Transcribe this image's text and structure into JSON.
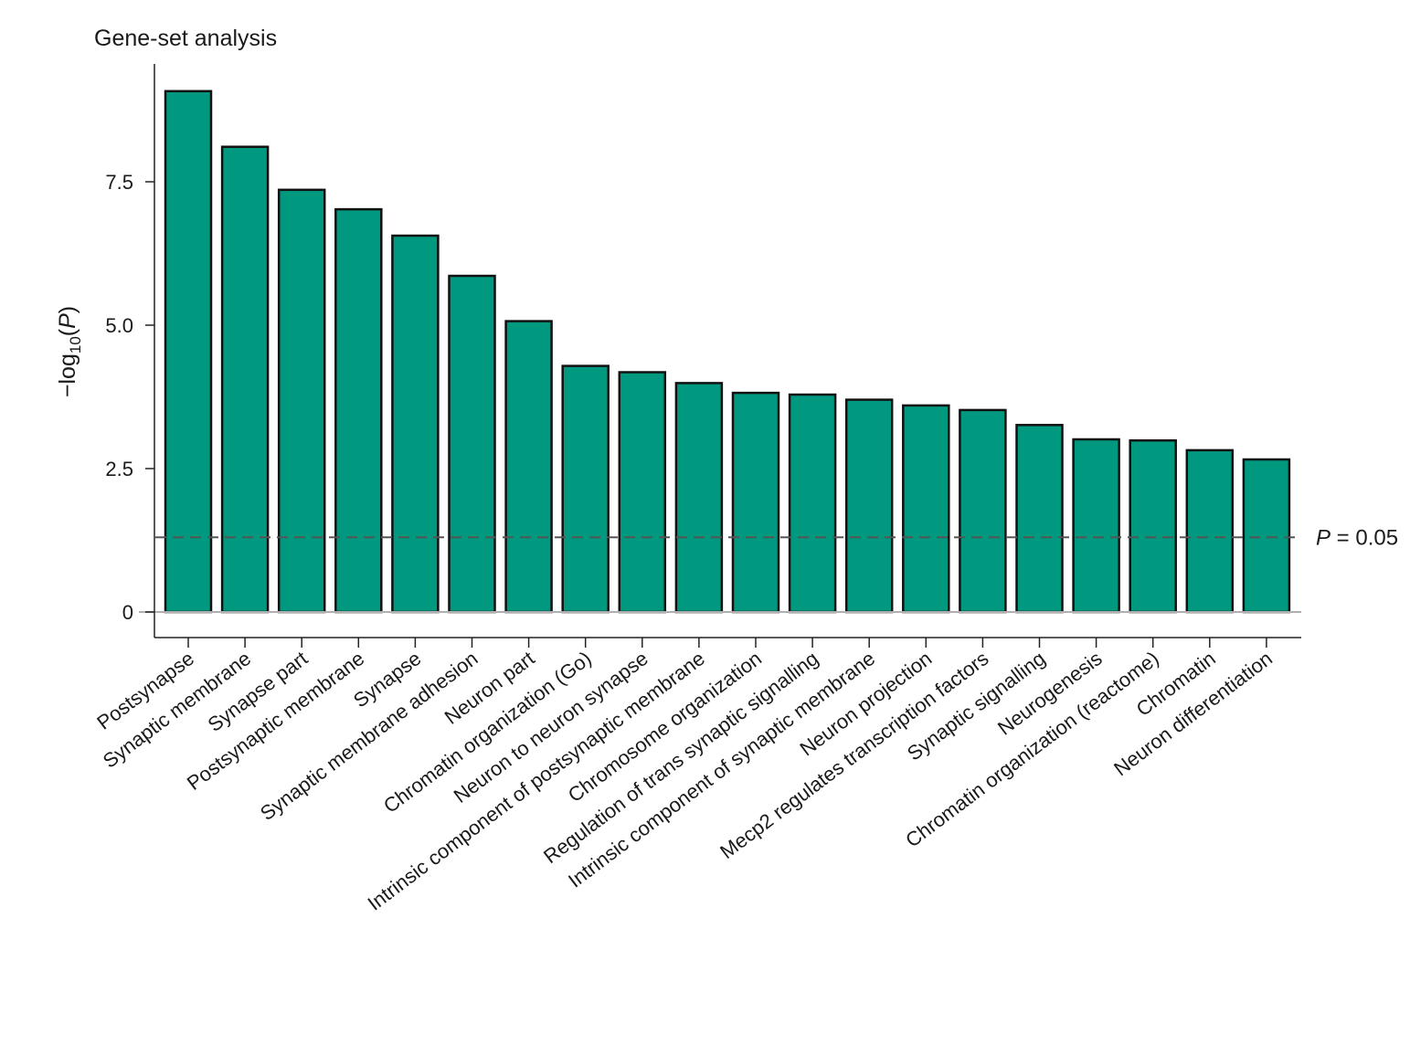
{
  "chart_data": {
    "type": "bar",
    "title": "Gene-set analysis",
    "ylabel": {
      "prefix": "−log",
      "subscript": "10",
      "open": "(",
      "var": "P",
      "close": ")"
    },
    "ylim": [
      0,
      9.3
    ],
    "yticks": [
      {
        "value": 0,
        "label": "0"
      },
      {
        "value": 2.5,
        "label": "2.5"
      },
      {
        "value": 5.0,
        "label": "5.0"
      },
      {
        "value": 7.5,
        "label": "7.5"
      }
    ],
    "categories": [
      "Postsynapse",
      "Synaptic membrane",
      "Synapse part",
      "Postsynaptic membrane",
      "Synapse",
      "Synaptic membrane adhesion",
      "Neuron part",
      "Chromatin organization (Go)",
      "Neuron to neuron synapse",
      "Intrinsic component of postsynaptic membrane",
      "Chromosome organization",
      "Regulation of trans synaptic signalling",
      "Intrinsic component of synaptic membrane",
      "Neuron projection",
      "Mecp2 regulates transcription factors",
      "Synaptic signalling",
      "Neurogenesis",
      "Chromatin organization (reactome)",
      "Chromatin",
      "Neuron differentiation"
    ],
    "values": [
      9.08,
      8.11,
      7.36,
      7.02,
      6.56,
      5.86,
      5.07,
      4.29,
      4.18,
      3.99,
      3.82,
      3.79,
      3.7,
      3.6,
      3.52,
      3.26,
      3.01,
      2.99,
      2.82,
      2.66
    ],
    "threshold": {
      "value": 1.301,
      "label_var": "P",
      "label_rest": " = 0.05"
    },
    "bar_color": "#009980",
    "bar_stroke": "#111111",
    "grid": false
  }
}
